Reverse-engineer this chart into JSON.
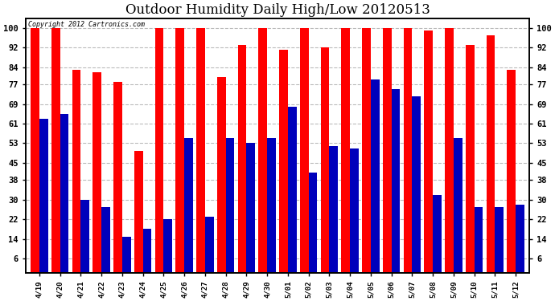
{
  "title": "Outdoor Humidity Daily High/Low 20120513",
  "copyright_text": "Copyright 2012 Cartronics.com",
  "dates": [
    "4/19",
    "4/20",
    "4/21",
    "4/22",
    "4/23",
    "4/24",
    "4/25",
    "4/26",
    "4/27",
    "4/28",
    "4/29",
    "4/30",
    "5/01",
    "5/02",
    "5/03",
    "5/04",
    "5/05",
    "5/06",
    "5/07",
    "5/08",
    "5/09",
    "5/10",
    "5/11",
    "5/12"
  ],
  "high": [
    100,
    100,
    83,
    82,
    78,
    50,
    100,
    100,
    100,
    80,
    93,
    100,
    91,
    100,
    92,
    100,
    100,
    100,
    100,
    99,
    100,
    93,
    97,
    83
  ],
  "low": [
    63,
    65,
    30,
    27,
    15,
    18,
    22,
    55,
    23,
    55,
    53,
    55,
    68,
    41,
    52,
    51,
    79,
    75,
    72,
    32,
    55,
    27,
    27,
    28
  ],
  "high_color": "#ff0000",
  "low_color": "#0000bb",
  "bg_color": "#ffffff",
  "ylim": [
    0,
    104
  ],
  "yticks": [
    6,
    14,
    22,
    30,
    38,
    45,
    53,
    61,
    69,
    77,
    84,
    92,
    100
  ],
  "grid_color": "#bbbbbb",
  "title_fontsize": 12,
  "bar_width": 0.42,
  "figwidth": 6.9,
  "figheight": 3.75,
  "dpi": 100
}
